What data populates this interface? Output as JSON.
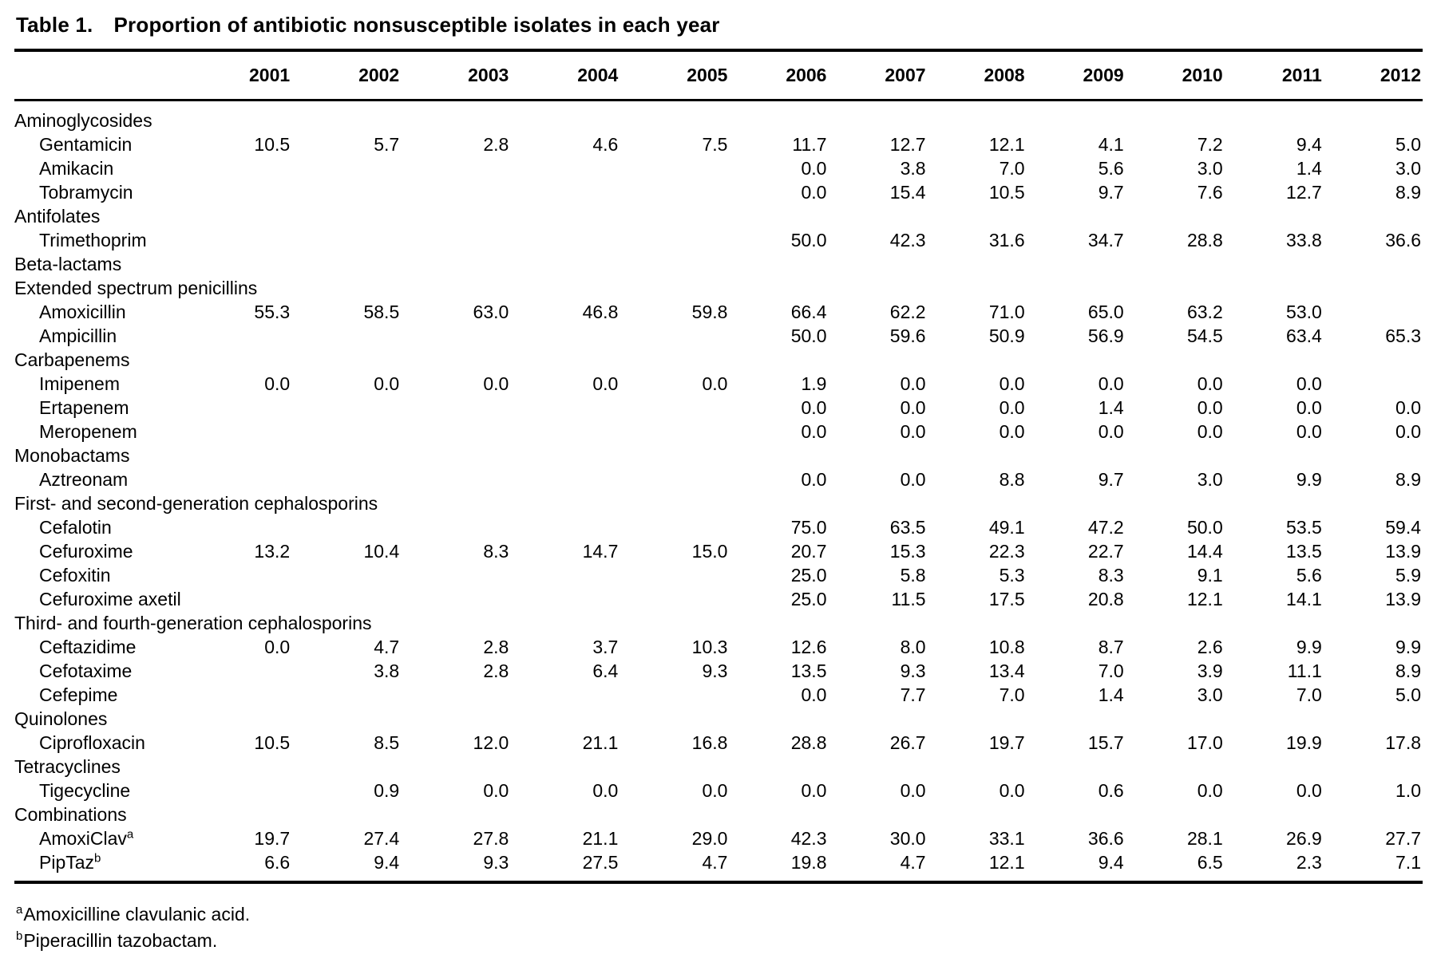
{
  "table": {
    "label": "Table 1.",
    "title": "Proportion of antibiotic nonsusceptible isolates in each year",
    "years": [
      "2001",
      "2002",
      "2003",
      "2004",
      "2005",
      "2006",
      "2007",
      "2008",
      "2009",
      "2010",
      "2011",
      "2012"
    ],
    "rows": [
      {
        "type": "category",
        "name": "Aminoglycosides"
      },
      {
        "type": "drug",
        "name": "Gentamicin",
        "values": [
          "10.5",
          "5.7",
          "2.8",
          "4.6",
          "7.5",
          "11.7",
          "12.7",
          "12.1",
          "4.1",
          "7.2",
          "9.4",
          "5.0"
        ]
      },
      {
        "type": "drug",
        "name": "Amikacin",
        "values": [
          "",
          "",
          "",
          "",
          "",
          "0.0",
          "3.8",
          "7.0",
          "5.6",
          "3.0",
          "1.4",
          "3.0"
        ]
      },
      {
        "type": "drug",
        "name": "Tobramycin",
        "values": [
          "",
          "",
          "",
          "",
          "",
          "0.0",
          "15.4",
          "10.5",
          "9.7",
          "7.6",
          "12.7",
          "8.9"
        ]
      },
      {
        "type": "category",
        "name": "Antifolates"
      },
      {
        "type": "drug",
        "name": "Trimethoprim",
        "values": [
          "",
          "",
          "",
          "",
          "",
          "50.0",
          "42.3",
          "31.6",
          "34.7",
          "28.8",
          "33.8",
          "36.6"
        ]
      },
      {
        "type": "category",
        "name": "Beta-lactams"
      },
      {
        "type": "category",
        "name": "Extended spectrum penicillins"
      },
      {
        "type": "drug",
        "name": "Amoxicillin",
        "values": [
          "55.3",
          "58.5",
          "63.0",
          "46.8",
          "59.8",
          "66.4",
          "62.2",
          "71.0",
          "65.0",
          "63.2",
          "53.0",
          ""
        ]
      },
      {
        "type": "drug",
        "name": "Ampicillin",
        "values": [
          "",
          "",
          "",
          "",
          "",
          "50.0",
          "59.6",
          "50.9",
          "56.9",
          "54.5",
          "63.4",
          "65.3"
        ]
      },
      {
        "type": "category",
        "name": "Carbapenems"
      },
      {
        "type": "drug",
        "name": "Imipenem",
        "values": [
          "0.0",
          "0.0",
          "0.0",
          "0.0",
          "0.0",
          "1.9",
          "0.0",
          "0.0",
          "0.0",
          "0.0",
          "0.0",
          ""
        ]
      },
      {
        "type": "drug",
        "name": "Ertapenem",
        "values": [
          "",
          "",
          "",
          "",
          "",
          "0.0",
          "0.0",
          "0.0",
          "1.4",
          "0.0",
          "0.0",
          "0.0"
        ]
      },
      {
        "type": "drug",
        "name": "Meropenem",
        "values": [
          "",
          "",
          "",
          "",
          "",
          "0.0",
          "0.0",
          "0.0",
          "0.0",
          "0.0",
          "0.0",
          "0.0"
        ]
      },
      {
        "type": "category",
        "name": "Monobactams"
      },
      {
        "type": "drug",
        "name": "Aztreonam",
        "values": [
          "",
          "",
          "",
          "",
          "",
          "0.0",
          "0.0",
          "8.8",
          "9.7",
          "3.0",
          "9.9",
          "8.9"
        ]
      },
      {
        "type": "category",
        "name": "First- and second-generation cephalosporins"
      },
      {
        "type": "drug",
        "name": "Cefalotin",
        "values": [
          "",
          "",
          "",
          "",
          "",
          "75.0",
          "63.5",
          "49.1",
          "47.2",
          "50.0",
          "53.5",
          "59.4"
        ]
      },
      {
        "type": "drug",
        "name": "Cefuroxime",
        "values": [
          "13.2",
          "10.4",
          "8.3",
          "14.7",
          "15.0",
          "20.7",
          "15.3",
          "22.3",
          "22.7",
          "14.4",
          "13.5",
          "13.9"
        ]
      },
      {
        "type": "drug",
        "name": "Cefoxitin",
        "values": [
          "",
          "",
          "",
          "",
          "",
          "25.0",
          "5.8",
          "5.3",
          "8.3",
          "9.1",
          "5.6",
          "5.9"
        ]
      },
      {
        "type": "drug",
        "name": "Cefuroxime axetil",
        "values": [
          "",
          "",
          "",
          "",
          "",
          "25.0",
          "11.5",
          "17.5",
          "20.8",
          "12.1",
          "14.1",
          "13.9"
        ]
      },
      {
        "type": "category",
        "name": "Third- and fourth-generation cephalosporins"
      },
      {
        "type": "drug",
        "name": "Ceftazidime",
        "values": [
          "0.0",
          "4.7",
          "2.8",
          "3.7",
          "10.3",
          "12.6",
          "8.0",
          "10.8",
          "8.7",
          "2.6",
          "9.9",
          "9.9"
        ]
      },
      {
        "type": "drug",
        "name": "Cefotaxime",
        "values": [
          "",
          "3.8",
          "2.8",
          "6.4",
          "9.3",
          "13.5",
          "9.3",
          "13.4",
          "7.0",
          "3.9",
          "11.1",
          "8.9"
        ]
      },
      {
        "type": "drug",
        "name": "Cefepime",
        "values": [
          "",
          "",
          "",
          "",
          "",
          "0.0",
          "7.7",
          "7.0",
          "1.4",
          "3.0",
          "7.0",
          "5.0"
        ]
      },
      {
        "type": "category",
        "name": "Quinolones"
      },
      {
        "type": "drug",
        "name": "Ciprofloxacin",
        "values": [
          "10.5",
          "8.5",
          "12.0",
          "21.1",
          "16.8",
          "28.8",
          "26.7",
          "19.7",
          "15.7",
          "17.0",
          "19.9",
          "17.8"
        ]
      },
      {
        "type": "category",
        "name": "Tetracyclines"
      },
      {
        "type": "drug",
        "name": "Tigecycline",
        "values": [
          "",
          "0.9",
          "0.0",
          "0.0",
          "0.0",
          "0.0",
          "0.0",
          "0.0",
          "0.6",
          "0.0",
          "0.0",
          "1.0"
        ]
      },
      {
        "type": "category",
        "name": "Combinations"
      },
      {
        "type": "drug",
        "name": "AmoxiClav",
        "sup": "a",
        "values": [
          "19.7",
          "27.4",
          "27.8",
          "21.1",
          "29.0",
          "42.3",
          "30.0",
          "33.1",
          "36.6",
          "28.1",
          "26.9",
          "27.7"
        ]
      },
      {
        "type": "drug",
        "name": "PipTaz",
        "sup": "b",
        "values": [
          "6.6",
          "9.4",
          "9.3",
          "27.5",
          "4.7",
          "19.8",
          "4.7",
          "12.1",
          "9.4",
          "6.5",
          "2.3",
          "7.1"
        ]
      }
    ],
    "footnotes": [
      {
        "marker": "a",
        "text": "Amoxicilline clavulanic acid."
      },
      {
        "marker": "b",
        "text": "Piperacillin tazobactam."
      }
    ]
  }
}
